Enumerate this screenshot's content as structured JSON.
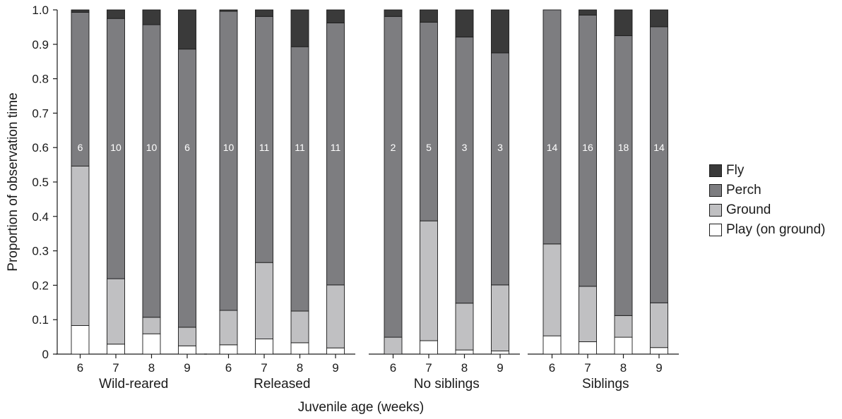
{
  "chart_data": {
    "type": "bar",
    "stacked": true,
    "ylabel": "Proportion of observation time",
    "xlabel": "Juvenile age (weeks)",
    "ylim": [
      0,
      1.0
    ],
    "yticks": [
      "0",
      "0.1",
      "0.2",
      "0.3",
      "0.4",
      "0.5",
      "0.6",
      "0.7",
      "0.8",
      "0.9",
      "1.0"
    ],
    "categories": [
      "6",
      "7",
      "8",
      "9"
    ],
    "legend_position": "right",
    "series": [
      {
        "key": "play",
        "name": "Play (on ground)",
        "color": "#ffffff"
      },
      {
        "key": "ground",
        "name": "Ground",
        "color": "#c0c0c2"
      },
      {
        "key": "perch",
        "name": "Perch",
        "color": "#7d7d80"
      },
      {
        "key": "fly",
        "name": "Fly",
        "color": "#3a3a3a"
      }
    ],
    "groups": [
      {
        "name": "Wild-reared",
        "bars": [
          {
            "week": "6",
            "n": "6",
            "play": 0.083,
            "ground": 0.463,
            "perch": 0.447,
            "fly": 0.007
          },
          {
            "week": "7",
            "n": "10",
            "play": 0.029,
            "ground": 0.19,
            "perch": 0.756,
            "fly": 0.025
          },
          {
            "week": "8",
            "n": "10",
            "play": 0.059,
            "ground": 0.048,
            "perch": 0.85,
            "fly": 0.043
          },
          {
            "week": "9",
            "n": "6",
            "play": 0.024,
            "ground": 0.054,
            "perch": 0.808,
            "fly": 0.114
          }
        ]
      },
      {
        "name": "Released",
        "bars": [
          {
            "week": "6",
            "n": "10",
            "play": 0.027,
            "ground": 0.1,
            "perch": 0.869,
            "fly": 0.004
          },
          {
            "week": "7",
            "n": "11",
            "play": 0.044,
            "ground": 0.222,
            "perch": 0.715,
            "fly": 0.019
          },
          {
            "week": "8",
            "n": "11",
            "play": 0.033,
            "ground": 0.092,
            "perch": 0.768,
            "fly": 0.107
          },
          {
            "week": "9",
            "n": "11",
            "play": 0.018,
            "ground": 0.183,
            "perch": 0.761,
            "fly": 0.038
          }
        ]
      },
      {
        "name": "No siblings",
        "bars": [
          {
            "week": "6",
            "n": "2",
            "play": 0.0,
            "ground": 0.049,
            "perch": 0.932,
            "fly": 0.019
          },
          {
            "week": "7",
            "n": "5",
            "play": 0.039,
            "ground": 0.348,
            "perch": 0.577,
            "fly": 0.036
          },
          {
            "week": "8",
            "n": "3",
            "play": 0.012,
            "ground": 0.136,
            "perch": 0.773,
            "fly": 0.079
          },
          {
            "week": "9",
            "n": "3",
            "play": 0.009,
            "ground": 0.192,
            "perch": 0.674,
            "fly": 0.125
          }
        ]
      },
      {
        "name": "Siblings",
        "bars": [
          {
            "week": "6",
            "n": "14",
            "play": 0.053,
            "ground": 0.267,
            "perch": 0.68,
            "fly": 0.0
          },
          {
            "week": "7",
            "n": "16",
            "play": 0.036,
            "ground": 0.161,
            "perch": 0.788,
            "fly": 0.015
          },
          {
            "week": "8",
            "n": "18",
            "play": 0.049,
            "ground": 0.063,
            "perch": 0.813,
            "fly": 0.075
          },
          {
            "week": "9",
            "n": "14",
            "play": 0.019,
            "ground": 0.13,
            "perch": 0.802,
            "fly": 0.049
          }
        ]
      }
    ]
  }
}
